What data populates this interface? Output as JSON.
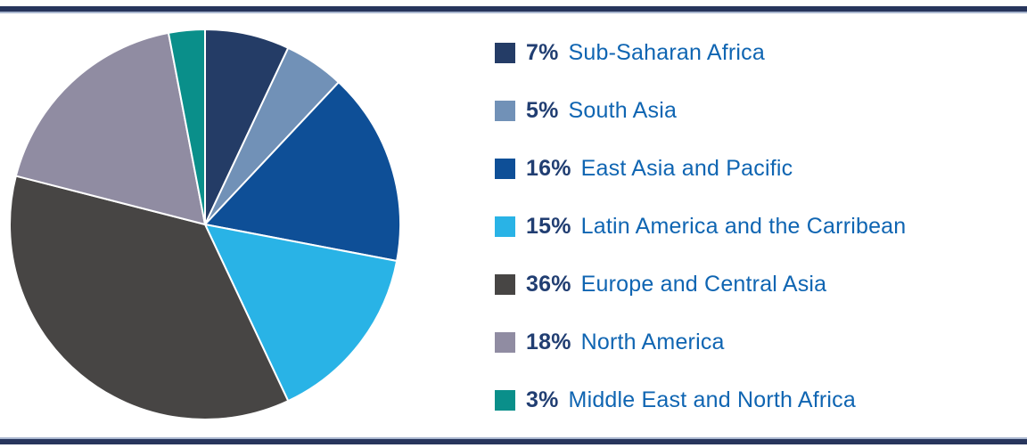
{
  "figure": {
    "background": "#ffffff",
    "rule_color": "#27355c",
    "rule_edge_color": "#aab7d0"
  },
  "chart_data": {
    "type": "pie",
    "title": "",
    "start_angle_deg": 0,
    "direction": "clockwise",
    "legend_position": "right",
    "slice_border_color": "#ffffff",
    "categories": [
      "Sub-Saharan Africa",
      "South Asia",
      "East Asia and Pacific",
      "Latin America and the Carribean",
      "Europe and Central Asia",
      "North America",
      "Middle East and North Africa"
    ],
    "values": [
      7,
      5,
      16,
      15,
      36,
      18,
      3
    ],
    "items": [
      {
        "pct_label": "7%",
        "label": "Sub-Saharan Africa",
        "value": 7,
        "color": "#243c66"
      },
      {
        "pct_label": "5%",
        "label": "South Asia",
        "value": 5,
        "color": "#7191b7"
      },
      {
        "pct_label": "16%",
        "label": "East Asia and Pacific",
        "value": 16,
        "color": "#0e4f97"
      },
      {
        "pct_label": "15%",
        "label": "Latin America and the Carribean",
        "value": 15,
        "color": "#29b3e6"
      },
      {
        "pct_label": "36%",
        "label": "Europe and Central Asia",
        "value": 36,
        "color": "#474544"
      },
      {
        "pct_label": "18%",
        "label": "North America",
        "value": 18,
        "color": "#908ca2"
      },
      {
        "pct_label": "3%",
        "label": "Middle East and North Africa",
        "value": 3,
        "color": "#0a8f8a"
      }
    ],
    "text_colors": {
      "percent": "#213e72",
      "label": "#0f65b2"
    }
  }
}
